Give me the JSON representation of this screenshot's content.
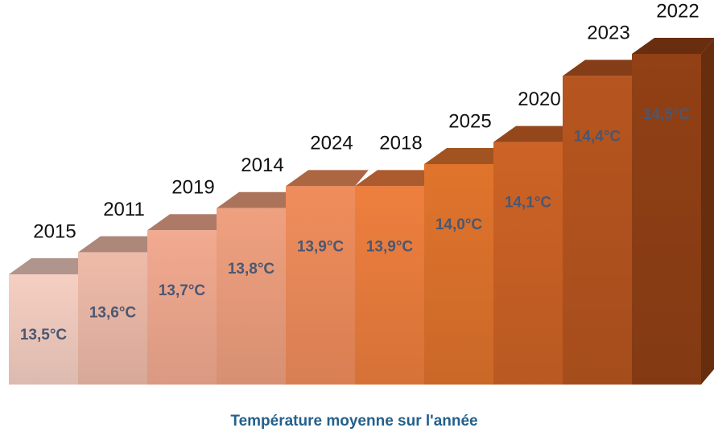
{
  "chart_data": {
    "type": "bar3d",
    "title": "Température moyenne sur l'année",
    "categories": [
      "2015",
      "2011",
      "2019",
      "2014",
      "2024",
      "2018",
      "2025",
      "2020",
      "2023",
      "2022"
    ],
    "values": [
      13.5,
      13.6,
      13.7,
      13.8,
      13.9,
      13.9,
      14.0,
      14.1,
      14.4,
      14.5
    ],
    "value_labels": [
      "13,5°C",
      "13,6°C",
      "13,7°C",
      "13,8°C",
      "13,9°C",
      "13,9°C",
      "14,0°C",
      "14,1°C",
      "14,4°C",
      "14,5°C"
    ],
    "colors": [
      "#f5cfc2",
      "#efbba9",
      "#f2aa90",
      "#efa07f",
      "#f08d5c",
      "#ee7f3e",
      "#e0742c",
      "#cd6326",
      "#b7551f",
      "#924015"
    ],
    "ylim": [
      13,
      14.5
    ]
  }
}
